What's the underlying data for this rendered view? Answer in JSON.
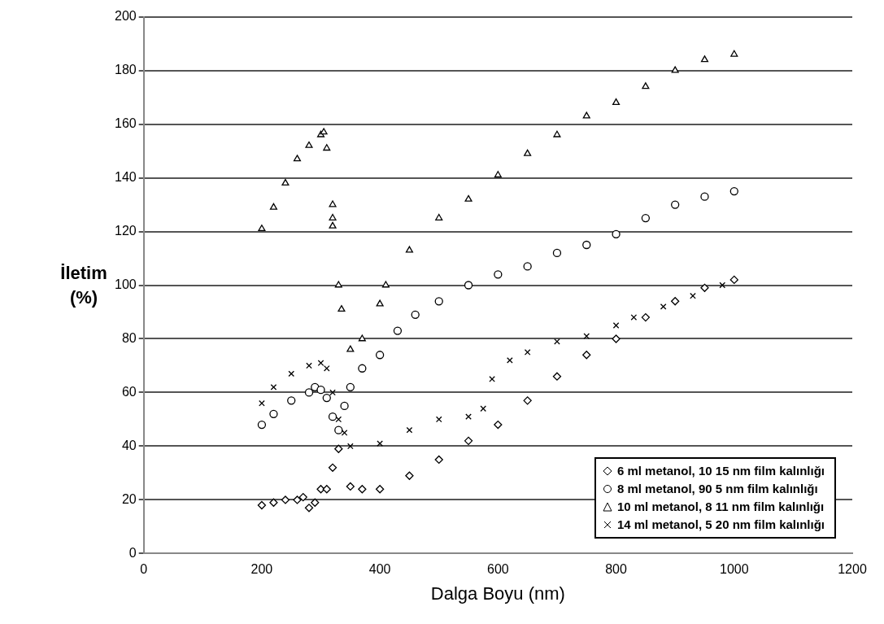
{
  "chart_data": {
    "type": "scatter",
    "xlabel": "Dalga Boyu (nm)",
    "ylabel": "İletim (%)",
    "xlim": [
      0,
      1200
    ],
    "xticks": [
      0,
      200,
      400,
      600,
      800,
      1000,
      1200
    ],
    "ylim": [
      0,
      200
    ],
    "yticks": [
      0,
      20,
      40,
      60,
      80,
      100,
      120,
      140,
      160,
      180,
      200
    ],
    "grid": "y",
    "legend": "bottom right",
    "series": [
      {
        "name": "6 ml metanol, 10 15 nm film kalınlığı",
        "color": "#000000",
        "marker": "diamond",
        "x": [
          200,
          220,
          240,
          260,
          270,
          280,
          290,
          300,
          310,
          320,
          330,
          350,
          370,
          400,
          450,
          500,
          550,
          600,
          650,
          700,
          750,
          800,
          850,
          900,
          950,
          1000
        ],
        "values": [
          18,
          19,
          20,
          20,
          21,
          17,
          19,
          24,
          24,
          32,
          39,
          25,
          24,
          24,
          29,
          35,
          42,
          48,
          57,
          66,
          74,
          80,
          88,
          94,
          99,
          102
        ]
      },
      {
        "name": "8 ml metanol, 90 5 nm film kalınlığı",
        "color": "#000000",
        "marker": "circle",
        "x": [
          200,
          220,
          250,
          280,
          290,
          300,
          310,
          320,
          330,
          340,
          350,
          370,
          400,
          430,
          460,
          500,
          550,
          600,
          650,
          700,
          750,
          800,
          850,
          900,
          950,
          1000
        ],
        "values": [
          48,
          52,
          57,
          60,
          62,
          61,
          58,
          51,
          46,
          55,
          62,
          69,
          74,
          83,
          89,
          94,
          100,
          104,
          107,
          112,
          115,
          119,
          125,
          130,
          133,
          135
        ]
      },
      {
        "name": "10 ml metanol, 8 11 nm film kalınlığı",
        "color": "#000000",
        "marker": "triangle",
        "x": [
          200,
          220,
          240,
          260,
          280,
          300,
          305,
          310,
          320,
          320,
          320,
          330,
          335,
          350,
          370,
          400,
          410,
          450,
          500,
          550,
          600,
          650,
          700,
          750,
          800,
          850,
          900,
          950,
          1000
        ],
        "values": [
          121,
          129,
          138,
          147,
          152,
          156,
          157,
          151,
          130,
          125,
          122,
          100,
          91,
          76,
          80,
          93,
          100,
          113,
          125,
          132,
          141,
          149,
          156,
          163,
          168,
          174,
          180,
          184,
          186
        ]
      },
      {
        "name": "14 ml metanol, 5 20 nm film kalınlığı",
        "color": "#000000",
        "marker": "cross",
        "x": [
          200,
          220,
          250,
          280,
          300,
          310,
          320,
          330,
          340,
          350,
          400,
          450,
          500,
          550,
          575,
          590,
          620,
          650,
          700,
          750,
          800,
          830,
          880,
          930,
          980
        ],
        "values": [
          56,
          62,
          67,
          70,
          71,
          69,
          60,
          50,
          45,
          40,
          41,
          46,
          50,
          51,
          54,
          65,
          72,
          75,
          79,
          81,
          85,
          88,
          92,
          96,
          100
        ]
      }
    ]
  }
}
